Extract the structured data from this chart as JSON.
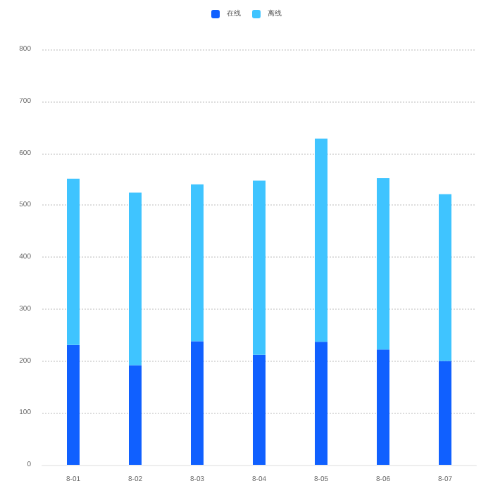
{
  "chart_data": {
    "type": "bar",
    "stacked": true,
    "categories": [
      "8-01",
      "8-02",
      "8-03",
      "8-04",
      "8-05",
      "8-06",
      "8-07"
    ],
    "series": [
      {
        "name": "在线",
        "color": "#1060ff",
        "values": [
          231,
          192,
          238,
          212,
          237,
          222,
          200
        ]
      },
      {
        "name": "离线",
        "color": "#3fc4ff",
        "values": [
          320,
          332,
          302,
          335,
          391,
          330,
          321
        ]
      }
    ],
    "ylim": [
      0,
      800
    ],
    "yticks": [
      0,
      100,
      200,
      300,
      400,
      500,
      600,
      700,
      800
    ],
    "grid": "y",
    "legend": "top"
  }
}
